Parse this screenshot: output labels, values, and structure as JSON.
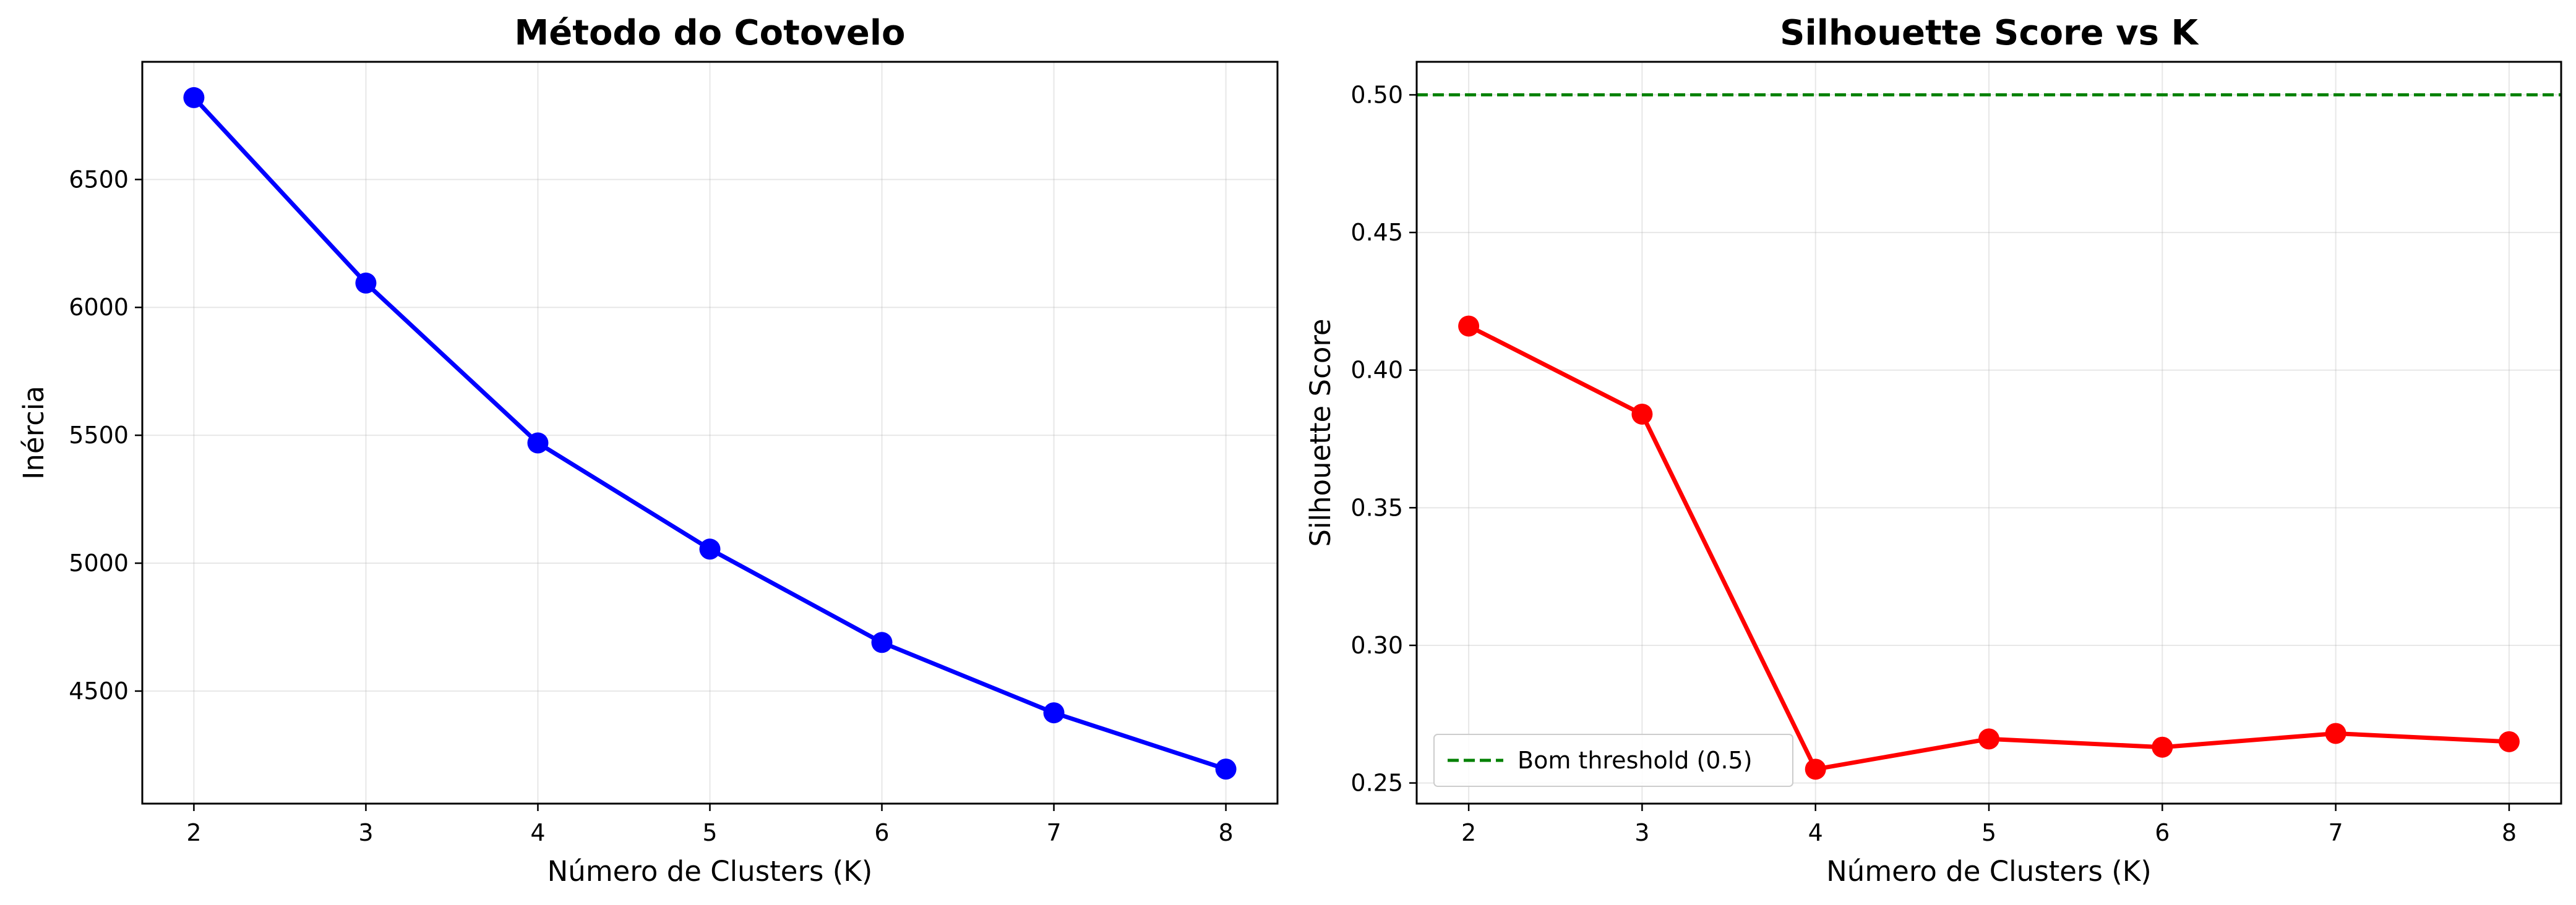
{
  "chart_data": [
    {
      "type": "line",
      "title": "Método do Cotovelo",
      "xlabel": "Número de Clusters (K)",
      "ylabel": "Inércia",
      "x": [
        2,
        3,
        4,
        5,
        6,
        7,
        8
      ],
      "xticks": [
        2,
        3,
        4,
        5,
        6,
        7,
        8
      ],
      "yticks": [
        4500,
        5000,
        5500,
        6000,
        6500
      ],
      "xlim": [
        1.7,
        8.3
      ],
      "ylim": [
        4060,
        6960
      ],
      "grid": true,
      "series": [
        {
          "values": [
            6820,
            6095,
            5470,
            5055,
            4690,
            4415,
            4195
          ],
          "color": "#0000ff",
          "marker": "circle"
        }
      ]
    },
    {
      "type": "line",
      "title": "Silhouette Score vs K",
      "xlabel": "Número de Clusters (K)",
      "ylabel": "Silhouette Score",
      "x": [
        2,
        3,
        4,
        5,
        6,
        7,
        8
      ],
      "xticks": [
        2,
        3,
        4,
        5,
        6,
        7,
        8
      ],
      "yticks": [
        0.25,
        0.3,
        0.35,
        0.4,
        0.45,
        0.5
      ],
      "ytick_format": 2,
      "xlim": [
        1.7,
        8.3
      ],
      "ylim": [
        0.2425,
        0.512
      ],
      "grid": true,
      "legend_position": "bottom-left",
      "series": [
        {
          "values": [
            0.416,
            0.384,
            0.255,
            0.266,
            0.263,
            0.268,
            0.265
          ],
          "color": "#ff0000",
          "marker": "circle"
        }
      ],
      "reference_lines": [
        {
          "name": "Bom threshold (0.5)",
          "y": 0.5,
          "color": "#008000",
          "style": "dashed"
        }
      ]
    }
  ]
}
